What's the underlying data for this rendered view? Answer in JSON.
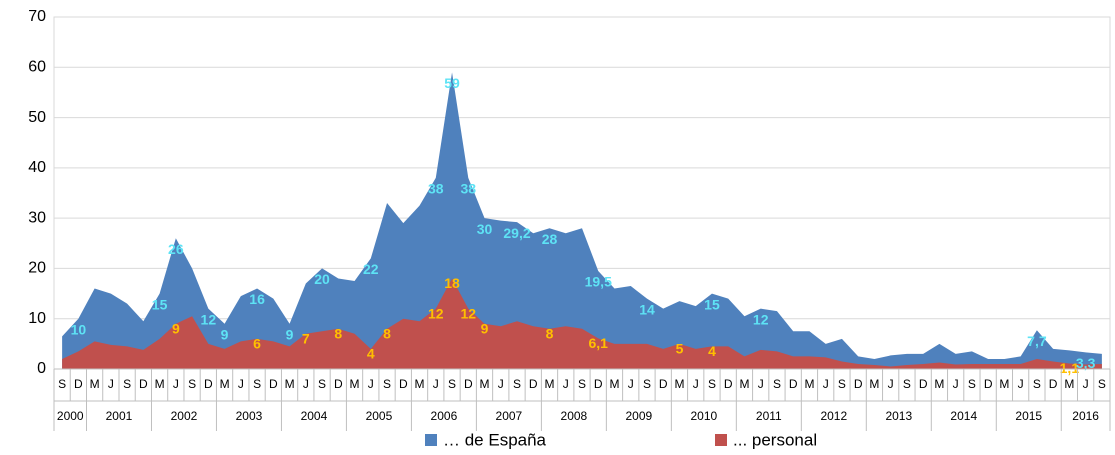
{
  "chart_data": {
    "type": "area",
    "categories": [
      "S",
      "D",
      "M",
      "J",
      "S",
      "D",
      "M",
      "J",
      "S",
      "D",
      "M",
      "J",
      "S",
      "D",
      "M",
      "J",
      "S",
      "D",
      "M",
      "J",
      "S",
      "D",
      "M",
      "J",
      "S",
      "D",
      "M",
      "J",
      "S",
      "D",
      "M",
      "J",
      "S",
      "D",
      "M",
      "J",
      "S",
      "D",
      "M",
      "J",
      "S",
      "D",
      "M",
      "J",
      "S",
      "D",
      "M",
      "J",
      "S",
      "D",
      "M",
      "J",
      "S",
      "D",
      "M",
      "J",
      "S",
      "D",
      "M",
      "J",
      "S",
      "D",
      "M",
      "J",
      "S"
    ],
    "years": [
      "2000",
      "2001",
      "2002",
      "2003",
      "2004",
      "2005",
      "2006",
      "2007",
      "2008",
      "2009",
      "2010",
      "2011",
      "2012",
      "2013",
      "2014",
      "2015",
      "2016"
    ],
    "series": [
      {
        "name": "… de España",
        "color": "#4f81bd",
        "label_color": "#5ee3f5",
        "values": [
          6.5,
          10,
          16,
          15,
          13,
          9.5,
          15,
          26,
          20,
          12,
          9,
          14.5,
          16,
          14,
          9,
          17,
          20,
          18,
          17.5,
          22,
          33,
          29,
          32.5,
          38,
          59,
          38,
          30,
          29.5,
          29.2,
          27,
          28,
          27,
          28,
          19.5,
          16,
          16.5,
          14,
          12,
          13.5,
          12.5,
          15,
          14,
          10.5,
          12,
          11.5,
          7.5,
          7.5,
          5,
          6,
          2.5,
          2,
          2.7,
          3,
          3,
          5,
          3,
          3.5,
          2,
          2,
          2.5,
          7.7,
          4,
          3.7,
          3.3,
          3
        ],
        "value_labels": [
          null,
          "10",
          null,
          null,
          null,
          null,
          "15",
          "26",
          null,
          "12",
          "9",
          null,
          "16",
          null,
          "9",
          null,
          "20",
          null,
          null,
          "22",
          null,
          null,
          null,
          "38",
          "59",
          "38",
          "30",
          null,
          "29,2",
          null,
          "28",
          null,
          null,
          "19,5",
          null,
          null,
          "14",
          null,
          null,
          null,
          "15",
          null,
          null,
          "12",
          null,
          null,
          null,
          null,
          null,
          null,
          null,
          null,
          null,
          null,
          null,
          null,
          null,
          null,
          null,
          null,
          "7,7",
          null,
          null,
          "3,3",
          null
        ]
      },
      {
        "name": "... personal",
        "color": "#c0504d",
        "label_color": "#ffc000",
        "values": [
          2,
          3.5,
          5.5,
          4.8,
          4.5,
          3.8,
          6,
          9,
          10.5,
          5,
          4,
          5.5,
          6,
          5.5,
          4.5,
          7,
          7.5,
          8,
          7,
          4,
          8,
          10,
          9.5,
          12,
          18,
          12,
          9,
          8.5,
          9.5,
          8.5,
          8,
          8.5,
          8,
          6.1,
          5,
          5,
          5,
          4,
          5,
          4,
          4.5,
          4.5,
          2.5,
          3.8,
          3.5,
          2.5,
          2.5,
          2.3,
          1.5,
          1,
          0.8,
          0.5,
          0.8,
          1,
          1.3,
          0.9,
          1,
          1,
          1,
          1,
          2,
          1.5,
          1.1,
          0.9,
          1
        ],
        "value_labels": [
          null,
          null,
          null,
          null,
          null,
          null,
          null,
          "9",
          null,
          null,
          null,
          null,
          "6",
          null,
          null,
          "7",
          null,
          "8",
          null,
          "4",
          "8",
          null,
          null,
          "12",
          "18",
          "12",
          "9",
          null,
          null,
          null,
          "8",
          null,
          null,
          "6,1",
          null,
          null,
          null,
          null,
          "5",
          null,
          "4",
          null,
          null,
          null,
          null,
          null,
          null,
          null,
          null,
          null,
          null,
          null,
          null,
          null,
          null,
          null,
          null,
          null,
          null,
          null,
          null,
          null,
          "1,1",
          null,
          null
        ]
      }
    ],
    "ylim": [
      0,
      70
    ],
    "yticks": [
      0,
      10,
      20,
      30,
      40,
      50,
      60,
      70
    ],
    "grid": true,
    "legend": "bottom"
  }
}
